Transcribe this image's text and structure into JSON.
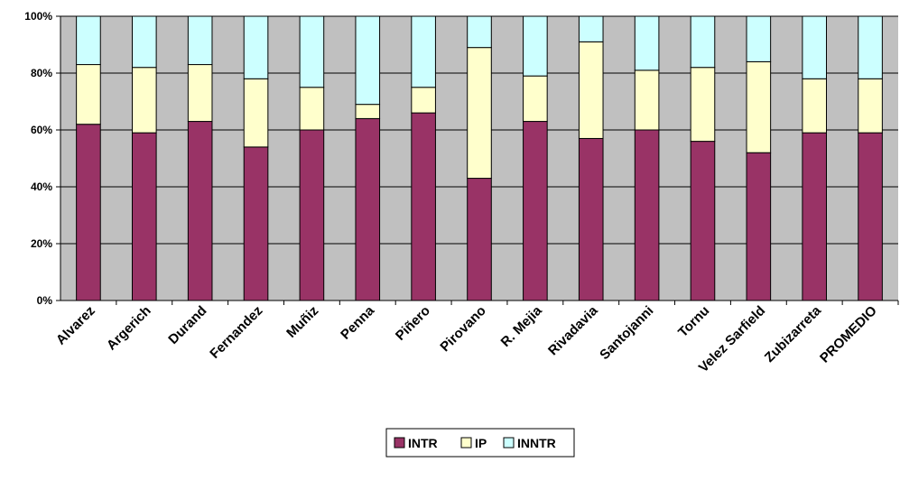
{
  "chart_data": {
    "type": "bar",
    "stacked": true,
    "percent": true,
    "categories": [
      "Alvarez",
      "Argerich",
      "Durand",
      "Fernandez",
      "Muñiz",
      "Penna",
      "Piñero",
      "Pirovano",
      "R. Mejia",
      "Rivadavia",
      "Santojanni",
      "Tornu",
      "Velez Sarfield",
      "Zubizarreta",
      "PROMEDIO"
    ],
    "series": [
      {
        "name": "INTR",
        "color": "#993366",
        "values": [
          62,
          59,
          63,
          54,
          60,
          64,
          66,
          43,
          63,
          57,
          60,
          56,
          52,
          59,
          59
        ]
      },
      {
        "name": "IP",
        "color": "#FFFFCC",
        "values": [
          21,
          23,
          20,
          24,
          15,
          5,
          9,
          46,
          16,
          34,
          21,
          26,
          32,
          19,
          19
        ]
      },
      {
        "name": "INNTR",
        "color": "#CCFFFF",
        "values": [
          17,
          18,
          17,
          22,
          25,
          31,
          25,
          11,
          21,
          9,
          19,
          18,
          16,
          22,
          22
        ]
      }
    ],
    "yticks": [
      "0%",
      "20%",
      "40%",
      "60%",
      "80%",
      "100%"
    ],
    "ylim": [
      0,
      100
    ],
    "plot_background": "#C0C0C0",
    "grid": true,
    "legend_position": "bottom"
  }
}
